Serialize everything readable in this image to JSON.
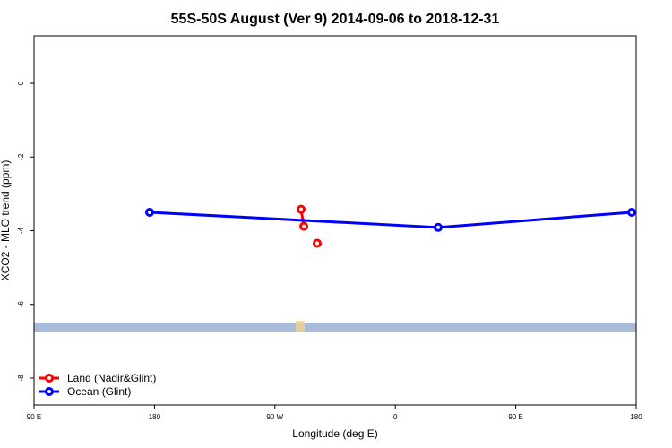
{
  "chart_data": {
    "type": "line",
    "title": "55S-50S August (Ver 9)   2014-09-06 to 2018-12-31",
    "x_label": "Longitude (deg E)",
    "y_label": "XCO2 - MLO trend (ppm)",
    "xlim": [
      90,
      540
    ],
    "ylim": [
      -8.73,
      1.29
    ],
    "xticks": [
      {
        "value": 90,
        "label": "90 E"
      },
      180,
      {
        "value": 270,
        "label": "90 W"
      },
      {
        "value": 360,
        "label": "0"
      },
      {
        "value": 450,
        "label": "90 E"
      },
      {
        "value": 540,
        "label": "180"
      }
    ],
    "yticks": [
      0,
      -2,
      -4,
      -6,
      -8
    ],
    "legend": "bottom-left",
    "series": [
      {
        "name": "Land (Nadir&Glint)",
        "color": "#ff0000",
        "x": [
          289.6,
          291.6,
          null,
          301.6
        ],
        "values": [
          -3.42,
          -3.88,
          null,
          -4.34
        ]
      },
      {
        "name": "Ocean (Glint)",
        "color": "#0000ff",
        "x": [
          176.4,
          392,
          536.7
        ],
        "values": [
          -3.5,
          -3.91,
          -3.5
        ]
      }
    ]
  }
}
